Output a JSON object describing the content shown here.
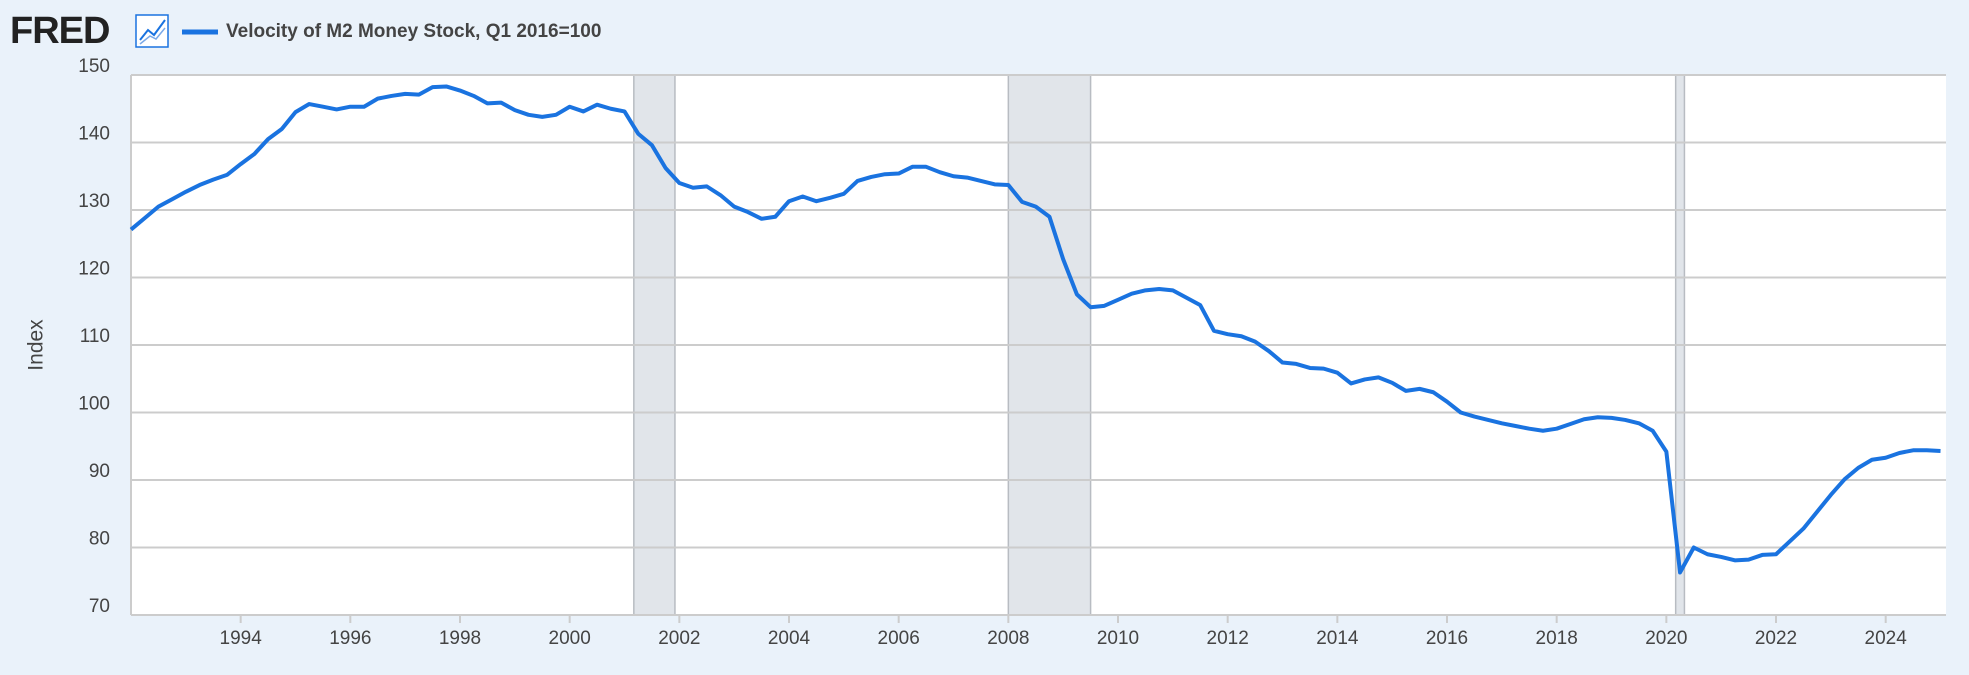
{
  "logo": "FRED",
  "chart_data": {
    "type": "line",
    "ylabel": "Index",
    "xlim": [
      1992,
      2025.1
    ],
    "xticks": [
      1994,
      1996,
      1998,
      2000,
      2002,
      2004,
      2006,
      2008,
      2010,
      2012,
      2014,
      2016,
      2018,
      2020,
      2022,
      2024
    ],
    "ylim": [
      70,
      150
    ],
    "yticks": [
      70,
      80,
      90,
      100,
      110,
      120,
      130,
      140,
      150
    ],
    "grid": true,
    "recessions": [
      [
        2001.17,
        2001.92
      ],
      [
        2008.0,
        2009.5
      ],
      [
        2020.17,
        2020.33
      ]
    ],
    "series": [
      {
        "name": "Velocity of M2 Money Stock, Q1 2016=100",
        "color": "#1a73e0",
        "x": [
          1992,
          1992.25,
          1992.5,
          1992.75,
          1993,
          1993.25,
          1993.5,
          1993.75,
          1994,
          1994.25,
          1994.5,
          1994.75,
          1995,
          1995.25,
          1995.5,
          1995.75,
          1996,
          1996.25,
          1996.5,
          1996.75,
          1997,
          1997.25,
          1997.5,
          1997.75,
          1998,
          1998.25,
          1998.5,
          1998.75,
          1999,
          1999.25,
          1999.5,
          1999.75,
          2000,
          2000.25,
          2000.5,
          2000.75,
          2001,
          2001.25,
          2001.5,
          2001.75,
          2002,
          2002.25,
          2002.5,
          2002.75,
          2003,
          2003.25,
          2003.5,
          2003.75,
          2004,
          2004.25,
          2004.5,
          2004.75,
          2005,
          2005.25,
          2005.5,
          2005.75,
          2006,
          2006.25,
          2006.5,
          2006.75,
          2007,
          2007.25,
          2007.5,
          2007.75,
          2008,
          2008.25,
          2008.5,
          2008.75,
          2009,
          2009.25,
          2009.5,
          2009.75,
          2010,
          2010.25,
          2010.5,
          2010.75,
          2011,
          2011.25,
          2011.5,
          2011.75,
          2012,
          2012.25,
          2012.5,
          2012.75,
          2013,
          2013.25,
          2013.5,
          2013.75,
          2014,
          2014.25,
          2014.5,
          2014.75,
          2015,
          2015.25,
          2015.5,
          2015.75,
          2016,
          2016.25,
          2016.5,
          2016.75,
          2017,
          2017.25,
          2017.5,
          2017.75,
          2018,
          2018.25,
          2018.5,
          2018.75,
          2019,
          2019.25,
          2019.5,
          2019.75,
          2020,
          2020.25,
          2020.5,
          2020.75,
          2021,
          2021.25,
          2021.5,
          2021.75,
          2022,
          2022.25,
          2022.5,
          2022.75,
          2023,
          2023.25,
          2023.5,
          2023.75,
          2024,
          2024.25,
          2024.5,
          2024.75,
          2025
        ],
        "values": [
          127.1,
          128.8,
          130.5,
          131.6,
          132.7,
          133.7,
          134.5,
          135.2,
          136.8,
          138.3,
          140.5,
          142.0,
          144.5,
          145.7,
          145.3,
          144.9,
          145.3,
          145.3,
          146.5,
          146.9,
          147.2,
          147.1,
          148.2,
          148.3,
          147.7,
          146.9,
          145.8,
          145.9,
          144.8,
          144.1,
          143.8,
          144.1,
          145.3,
          144.6,
          145.6,
          145.0,
          144.6,
          141.3,
          139.6,
          136.2,
          134.0,
          133.3,
          133.5,
          132.2,
          130.5,
          129.7,
          128.7,
          129.0,
          131.3,
          132.0,
          131.3,
          131.8,
          132.4,
          134.3,
          134.9,
          135.3,
          135.4,
          136.4,
          136.4,
          135.6,
          135.0,
          134.8,
          134.3,
          133.8,
          133.7,
          131.2,
          130.5,
          129.0,
          122.7,
          117.5,
          115.6,
          115.8,
          116.7,
          117.6,
          118.1,
          118.3,
          118.1,
          117.0,
          115.9,
          112.1,
          111.6,
          111.3,
          110.5,
          109.1,
          107.4,
          107.2,
          106.6,
          106.5,
          105.9,
          104.3,
          104.9,
          105.2,
          104.4,
          103.2,
          103.5,
          103.0,
          101.6,
          100.0,
          99.4,
          98.9,
          98.4,
          98.0,
          97.6,
          97.3,
          97.6,
          98.3,
          99.0,
          99.3,
          99.2,
          98.9,
          98.4,
          97.3,
          94.2,
          76.3,
          80.0,
          79.0,
          78.6,
          78.1,
          78.2,
          78.9,
          79.0,
          80.9,
          82.8,
          85.3,
          87.8,
          90.1,
          91.8,
          93.0,
          93.3,
          94.0,
          94.4,
          94.4,
          94.3
        ]
      }
    ]
  }
}
